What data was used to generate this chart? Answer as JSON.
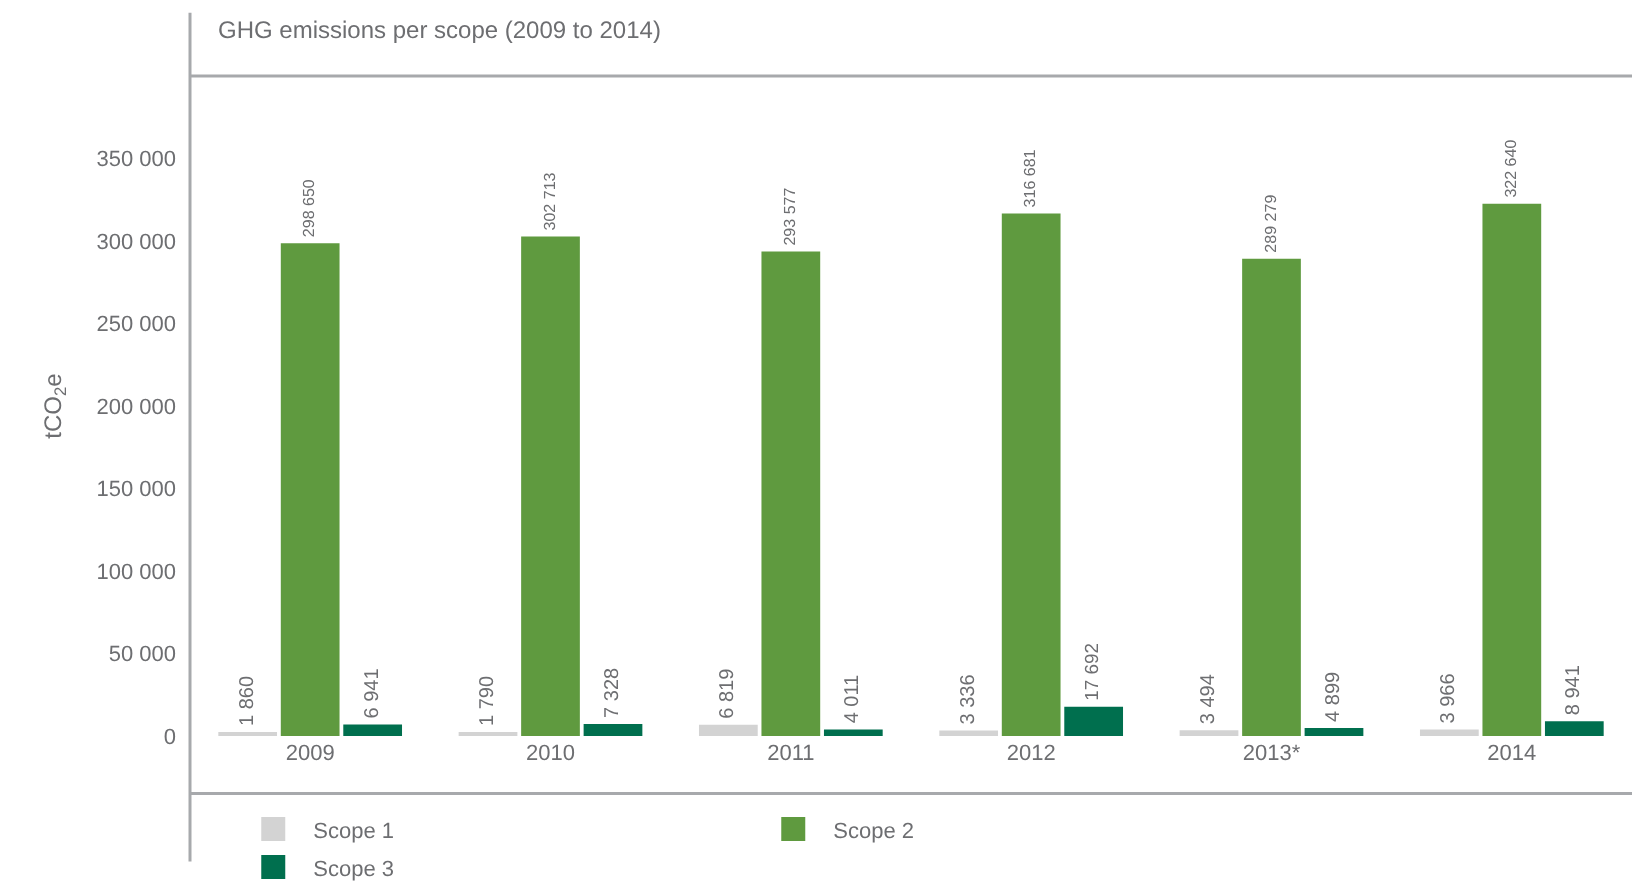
{
  "chart_data": {
    "type": "bar",
    "title": "GHG emissions per scope (2009 to 2014)",
    "ylabel": "tCO$_{2}$e",
    "categories": [
      "2009",
      "2010",
      "2011",
      "2012",
      "2013*",
      "2014"
    ],
    "series": [
      {
        "name": "Scope 1",
        "color": "#d3d3d3",
        "values": [
          1860,
          1790,
          6819,
          3336,
          3494,
          3966
        ],
        "value_labels": [
          "1 860",
          "1 790",
          "6 819",
          "3 336",
          "3 494",
          "3 966"
        ]
      },
      {
        "name": "Scope 2",
        "color": "#5f9a3f",
        "values": [
          298650,
          302713,
          293577,
          316681,
          289279,
          322640
        ],
        "value_labels": [
          "298 650",
          "302 713",
          "293 577",
          "316 681",
          "289 279",
          "322 640"
        ]
      },
      {
        "name": "Scope 3",
        "color": "#006f4e",
        "values": [
          6941,
          7328,
          4011,
          17692,
          4899,
          8941
        ],
        "value_labels": [
          "6 941",
          "7 328",
          "4 011",
          "17 692",
          "4 899",
          "8 941"
        ]
      }
    ],
    "ylim": [
      0,
      400000
    ],
    "yticks": [
      {
        "value": 0,
        "label": "0"
      },
      {
        "value": 50000,
        "label": "50 000"
      },
      {
        "value": 100000,
        "label": "100 000"
      },
      {
        "value": 150000,
        "label": "150 000"
      },
      {
        "value": 200000,
        "label": "200 000"
      },
      {
        "value": 250000,
        "label": "250 000"
      },
      {
        "value": 300000,
        "label": "300 000"
      },
      {
        "value": 350000,
        "label": "350 000"
      }
    ],
    "legend": "bottom"
  }
}
